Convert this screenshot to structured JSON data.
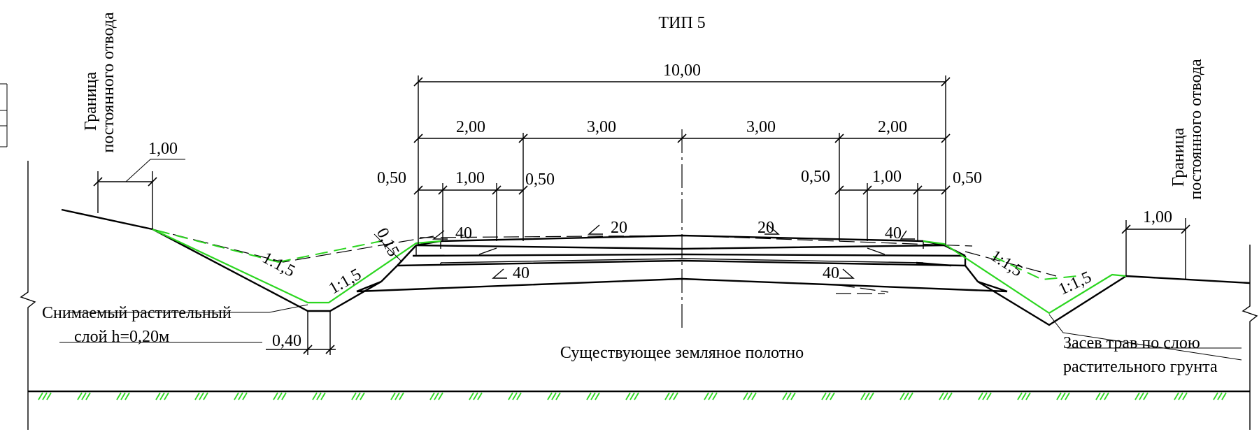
{
  "title": "ТИП 5",
  "dimensions": {
    "total_width": "10,00",
    "shoulder_left": "2,00",
    "lane_left": "3,00",
    "lane_right": "3,00",
    "shoulder_right": "2,00",
    "berm_left_a": "0,50",
    "berm_left_b": "1,00",
    "berm_left_c": "0,50",
    "berm_right_a": "0,50",
    "berm_right_b": "1,00",
    "berm_right_c": "0,50",
    "boundary_offset_left": "1,00",
    "boundary_offset_right": "1,00",
    "ditch_bottom": "0,40",
    "layer_thickness": "0,15"
  },
  "slopes": {
    "shoulder_left": "40",
    "surface_left": "20",
    "surface_right": "20",
    "shoulder_right": "40",
    "base_left": "40",
    "base_right": "40",
    "ditch_outer_left": "1:1,5",
    "ditch_inner_left": "1:1,5",
    "ditch_inner_right": "1:1,5",
    "ditch_outer_right": "1:1,5"
  },
  "labels": {
    "boundary_left_line1": "Граница",
    "boundary_left_line2": "постоянного отвода",
    "boundary_right_line1": "Граница",
    "boundary_right_line2": "постоянного отвода",
    "topsoil_line1": "Снимаемый растительный",
    "topsoil_line2": "слой h=0,20м",
    "existing_subgrade": "Существующее земляное полотно",
    "grass_line1": "Засев трав по слою",
    "grass_line2": "растительного грунта"
  },
  "colors": {
    "lines": "#000000",
    "vegetation": "#2bd61f"
  }
}
